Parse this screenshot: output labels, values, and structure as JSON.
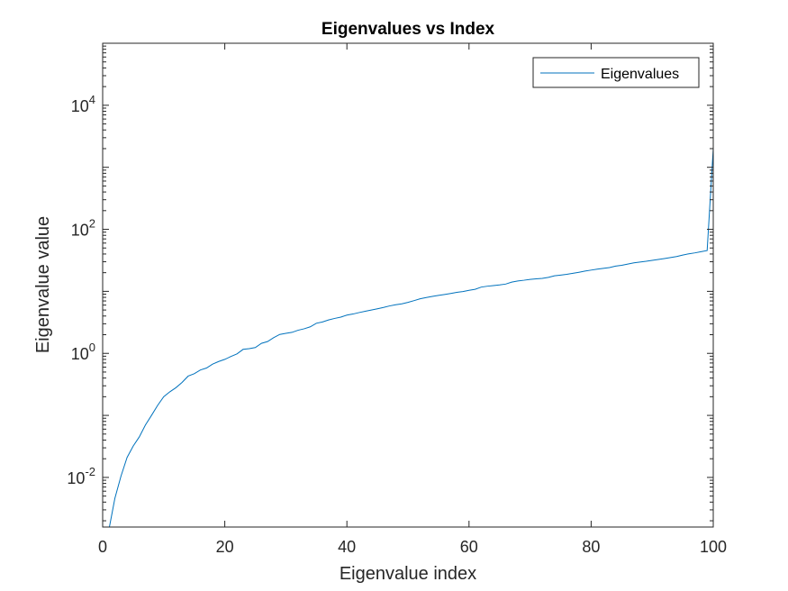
{
  "chart_data": {
    "type": "line",
    "title": "Eigenvalues vs Index",
    "xlabel": "Eigenvalue index",
    "ylabel": "Eigenvalue value",
    "xlim": [
      0,
      100
    ],
    "ylim_log10": [
      -2.8,
      5.0
    ],
    "yscale": "log",
    "grid": false,
    "legend_position": "top-right",
    "x_ticks": [
      0,
      20,
      40,
      60,
      80,
      100
    ],
    "x_tick_labels": [
      "0",
      "20",
      "40",
      "60",
      "80",
      "100"
    ],
    "y_ticks_log10": [
      -2,
      0,
      2,
      4
    ],
    "y_tick_bases": [
      "10",
      "10",
      "10",
      "10"
    ],
    "y_tick_exponents": [
      "-2",
      "0",
      "2",
      "4"
    ],
    "series": [
      {
        "name": "Eigenvalues",
        "color": "#0072BD",
        "x": [
          1,
          2,
          3,
          4,
          5,
          6,
          7,
          8,
          9,
          10,
          11,
          12,
          13,
          14,
          15,
          16,
          17,
          18,
          19,
          20,
          21,
          22,
          23,
          24,
          25,
          26,
          27,
          28,
          29,
          30,
          31,
          32,
          33,
          34,
          35,
          36,
          37,
          38,
          39,
          40,
          41,
          42,
          43,
          44,
          45,
          46,
          47,
          48,
          49,
          50,
          51,
          52,
          53,
          54,
          55,
          56,
          57,
          58,
          59,
          60,
          61,
          62,
          63,
          64,
          65,
          66,
          67,
          68,
          69,
          70,
          71,
          72,
          73,
          74,
          75,
          76,
          77,
          78,
          79,
          80,
          81,
          82,
          83,
          84,
          85,
          86,
          87,
          88,
          89,
          90,
          91,
          92,
          93,
          94,
          95,
          96,
          97,
          98,
          99,
          100
        ],
        "y": [
          0.0014,
          0.0046,
          0.0105,
          0.021,
          0.032,
          0.045,
          0.07,
          0.1,
          0.145,
          0.2,
          0.24,
          0.28,
          0.34,
          0.43,
          0.47,
          0.54,
          0.58,
          0.67,
          0.74,
          0.8,
          0.89,
          0.98,
          1.16,
          1.19,
          1.24,
          1.45,
          1.55,
          1.79,
          2.02,
          2.1,
          2.18,
          2.36,
          2.49,
          2.68,
          3.06,
          3.21,
          3.46,
          3.66,
          3.84,
          4.14,
          4.31,
          4.55,
          4.77,
          4.99,
          5.24,
          5.5,
          5.82,
          6.09,
          6.29,
          6.65,
          7.09,
          7.58,
          7.95,
          8.3,
          8.59,
          8.89,
          9.25,
          9.65,
          9.92,
          10.4,
          10.8,
          11.7,
          12.1,
          12.4,
          12.7,
          13.1,
          14.1,
          14.7,
          15.1,
          15.6,
          15.9,
          16.2,
          16.8,
          17.8,
          18.3,
          18.8,
          19.5,
          20.3,
          21.2,
          22.0,
          22.8,
          23.5,
          24.2,
          25.5,
          26.3,
          27.5,
          28.8,
          29.7,
          30.5,
          31.6,
          32.7,
          33.8,
          35.0,
          36.4,
          38.5,
          40.3,
          41.7,
          43.6,
          45.5,
          2000
        ]
      }
    ]
  }
}
